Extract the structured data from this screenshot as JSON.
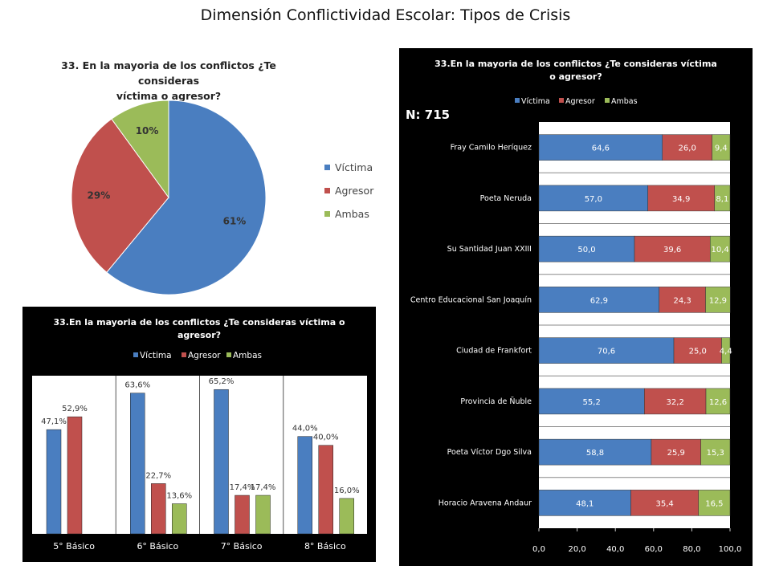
{
  "page_title": "Dimensión Conflictividad Escolar: Tipos de Crisis",
  "colors": {
    "victima": "#4a7ec0",
    "agresor": "#c0504d",
    "ambas": "#9bbb59"
  },
  "chart_data": [
    {
      "type": "pie",
      "title": "33. En la mayoria de los conflictos ¿Te consideras víctima o agresor?",
      "title_lines": [
        "33. En la mayoria de los conflictos ¿Te consideras",
        "víctima o agresor?"
      ],
      "legend_position": "right",
      "categories": [
        "Víctima",
        "Agresor",
        "Ambas"
      ],
      "values": [
        61,
        29,
        10
      ],
      "labels": [
        "61%",
        "29%",
        "10%"
      ]
    },
    {
      "type": "bar",
      "title": "33.En la mayoria de los conflictos ¿Te consideras víctima o agresor?",
      "title_lines": [
        "33.En la mayoria de los conflictos ¿Te consideras víctima o",
        "agresor?"
      ],
      "legend_position": "top",
      "categories": [
        "5° Básico",
        "6° Básico",
        "7° Básico",
        "8° Básico"
      ],
      "ylim": [
        0,
        70
      ],
      "series": [
        {
          "name": "Víctima",
          "values": [
            47.1,
            63.6,
            65.2,
            44.0
          ],
          "labels": [
            "47,1%",
            "63,6%",
            "65,2%",
            "44,0%"
          ]
        },
        {
          "name": "Agresor",
          "values": [
            52.9,
            22.7,
            17.4,
            40.0
          ],
          "labels": [
            "52,9%",
            "22,7%",
            "17,4%",
            "40,0%"
          ]
        },
        {
          "name": "Ambas",
          "values": [
            0,
            13.6,
            17.4,
            16.0
          ],
          "labels": [
            "",
            "13,6%",
            "17,4%",
            "16,0%"
          ]
        }
      ]
    },
    {
      "type": "bar",
      "orientation": "horizontal-stacked",
      "title": "33.En la mayoria de los conflictos ¿Te consideras víctima o agresor?",
      "title_lines": [
        "33.En la mayoria de los conflictos ¿Te consideras víctima",
        "o agresor?"
      ],
      "legend_position": "top",
      "annotation": "N: 715",
      "xlim": [
        0,
        100
      ],
      "xticks": [
        "0,0",
        "20,0",
        "40,0",
        "60,0",
        "80,0",
        "100,0"
      ],
      "categories": [
        "Fray Camilo Heríquez",
        "Poeta Neruda",
        "Su Santidad Juan XXIII",
        "Centro Educacional San Joaquín",
        "Ciudad de Frankfort",
        "Provincia de Ñuble",
        "Poeta Víctor Dgo Silva",
        "Horacio Aravena Andaur"
      ],
      "series": [
        {
          "name": "Víctima",
          "values": [
            64.6,
            57.0,
            50.0,
            62.9,
            70.6,
            55.2,
            58.8,
            48.1
          ],
          "labels": [
            "64,6",
            "57,0",
            "50,0",
            "62,9",
            "70,6",
            "55,2",
            "58,8",
            "48,1"
          ]
        },
        {
          "name": "Agresor",
          "values": [
            26.0,
            34.9,
            39.6,
            24.3,
            25.0,
            32.2,
            25.9,
            35.4
          ],
          "labels": [
            "26,0",
            "34,9",
            "39,6",
            "24,3",
            "25,0",
            "32,2",
            "25,9",
            "35,4"
          ]
        },
        {
          "name": "Ambas",
          "values": [
            9.4,
            8.1,
            10.4,
            12.9,
            4.4,
            12.6,
            15.3,
            16.5
          ],
          "labels": [
            "9,4",
            "8,1",
            "10,4",
            "12,9",
            "4,4",
            "12,6",
            "15,3",
            "16,5"
          ]
        }
      ]
    }
  ]
}
